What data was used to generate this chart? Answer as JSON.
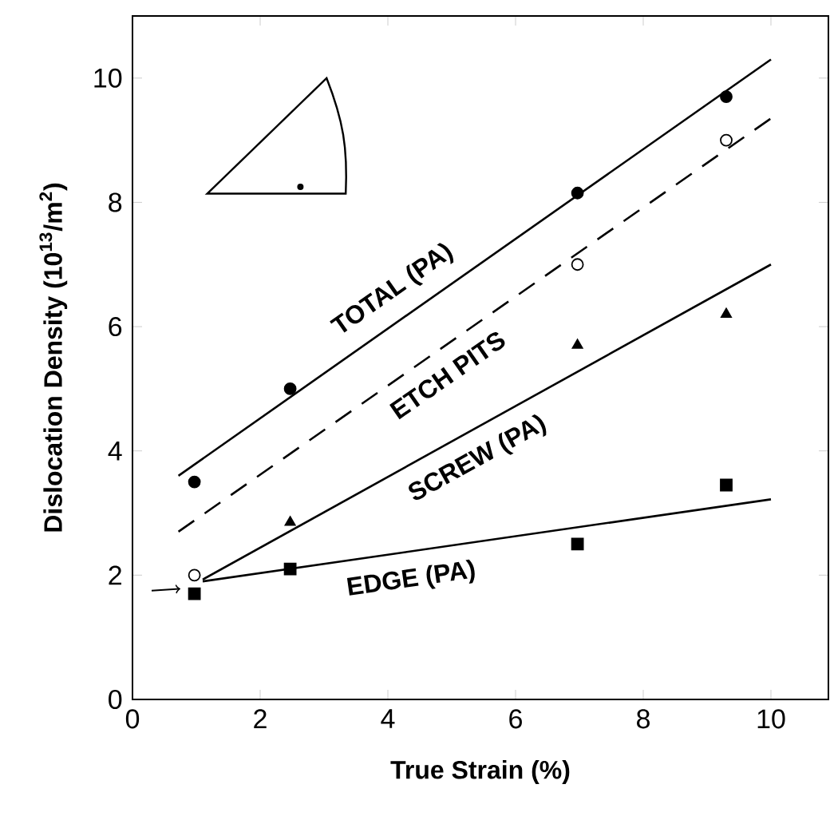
{
  "chart_data": {
    "type": "scatter",
    "xlabel": "True  Strain (%)",
    "ylabel": "Dislocation Density (10$^{13}$/m$^{2}$)",
    "xlim": [
      0,
      10.9
    ],
    "ylim": [
      0,
      11
    ],
    "xticks": [
      0,
      2,
      4,
      6,
      8,
      10
    ],
    "yticks": [
      0,
      2,
      4,
      6,
      8,
      10
    ],
    "series": [
      {
        "marker": "circle",
        "color": "#000000",
        "x": [
          0.97,
          2.47,
          6.97,
          9.3
        ],
        "values": [
          3.5,
          5.0,
          8.15,
          9.7
        ]
      },
      {
        "marker": "circle",
        "color": "#ffffff",
        "x": [
          0.97,
          6.97,
          9.3
        ],
        "values": [
          2.0,
          7.0,
          9.0
        ]
      },
      {
        "marker": "triangle",
        "color": "#000000",
        "x": [
          2.47,
          6.97,
          9.3
        ],
        "values": [
          2.85,
          5.7,
          6.2
        ]
      },
      {
        "marker": "square",
        "color": "#000000",
        "x": [
          0.97,
          2.47,
          6.97,
          9.3
        ],
        "values": [
          1.7,
          2.1,
          2.5,
          3.45
        ]
      },
      {
        "type": "line",
        "name": "TOTAL (PA)",
        "color": "#000000",
        "line_style": "solid",
        "x": [
          0.72,
          10
        ],
        "values": [
          3.6,
          10.3
        ]
      },
      {
        "type": "line",
        "name": "ETCH  PITS",
        "color": "#000000",
        "line_style": "dashed",
        "x": [
          0.72,
          10
        ],
        "values": [
          2.7,
          9.35
        ]
      },
      {
        "type": "line",
        "name": "SCREW (PA)",
        "color": "#000000",
        "line_style": "solid",
        "x": [
          1.1,
          10
        ],
        "values": [
          1.93,
          7.0
        ]
      },
      {
        "type": "line",
        "name": "EDGE (PA)",
        "color": "#000000",
        "line_style": "solid",
        "x": [
          1.1,
          10
        ],
        "values": [
          1.9,
          3.22
        ]
      }
    ]
  }
}
